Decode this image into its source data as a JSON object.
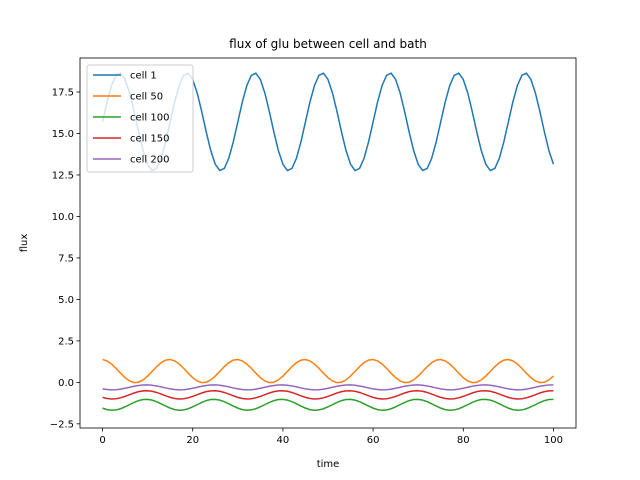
{
  "chart_data": {
    "type": "line",
    "title": "flux of glu between cell and bath",
    "xlabel": "time",
    "ylabel": "flux",
    "xlim": [
      -5,
      105
    ],
    "ylim": [
      -2.75,
      19.55
    ],
    "xticks": [
      0,
      20,
      40,
      60,
      80,
      100
    ],
    "xtick_labels": [
      "0",
      "20",
      "40",
      "60",
      "80",
      "100"
    ],
    "yticks": [
      -2.5,
      0.0,
      2.5,
      5.0,
      7.5,
      10.0,
      12.5,
      15.0,
      17.5
    ],
    "ytick_labels": [
      "−2.5",
      "0.0",
      "2.5",
      "5.0",
      "7.5",
      "10.0",
      "12.5",
      "15.0",
      "17.5"
    ],
    "grid": false,
    "legend_position": "upper-left",
    "series": [
      {
        "name": "cell 1",
        "color": "#1f77b4",
        "offset": 15.7,
        "amplitude": 2.95,
        "period": 15.0,
        "phase": 0.0
      },
      {
        "name": "cell 50",
        "color": "#ff7f0e",
        "offset": 0.68,
        "amplitude": 0.7,
        "period": 15.0,
        "phase": 1.65
      },
      {
        "name": "cell 100",
        "color": "#2ca02c",
        "offset": -1.35,
        "amplitude": 0.33,
        "period": 15.0,
        "phase": 3.8
      },
      {
        "name": "cell 150",
        "color": "#d62728",
        "offset": -0.75,
        "amplitude": 0.25,
        "period": 15.0,
        "phase": 3.8
      },
      {
        "name": "cell 200",
        "color": "#9467bd",
        "offset": -0.3,
        "amplitude": 0.15,
        "period": 15.0,
        "phase": 3.8
      }
    ],
    "x_range": [
      0,
      100
    ]
  }
}
